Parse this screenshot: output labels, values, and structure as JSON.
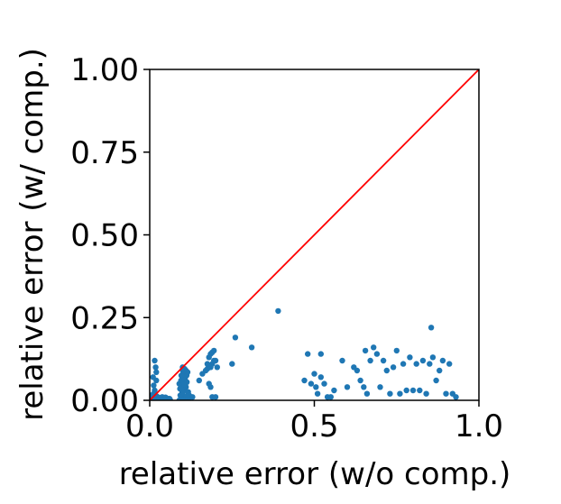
{
  "chart_data": {
    "type": "scatter",
    "title": "",
    "xlabel": "relative error (w/o comp.)",
    "ylabel": "relative error (w/ comp.)",
    "xlim": [
      0.0,
      1.0
    ],
    "ylim": [
      0.0,
      1.0
    ],
    "x_ticks": [
      "0.0",
      "0.5",
      "1.0"
    ],
    "y_ticks": [
      "0.00",
      "0.25",
      "0.50",
      "0.75",
      "1.00"
    ],
    "grid": false,
    "legend": "none",
    "colors": {
      "points": "#1f77b4",
      "reference_line": "#ff0000",
      "axes": "#000000"
    },
    "reference_line": {
      "x": [
        0.0,
        1.0
      ],
      "y": [
        0.0,
        1.0
      ]
    },
    "series": [
      {
        "points": [
          [
            0.01,
            0.0
          ],
          [
            0.015,
            0.005
          ],
          [
            0.02,
            0.01
          ],
          [
            0.025,
            0.003
          ],
          [
            0.03,
            0.008
          ],
          [
            0.035,
            0.004
          ],
          [
            0.04,
            0.006
          ],
          [
            0.045,
            0.002
          ],
          [
            0.05,
            0.007
          ],
          [
            0.055,
            0.003
          ],
          [
            0.06,
            0.005
          ],
          [
            0.005,
            0.015
          ],
          [
            0.012,
            0.02
          ],
          [
            0.018,
            0.004
          ],
          [
            0.022,
            0.012
          ],
          [
            0.028,
            0.006
          ],
          [
            0.033,
            0.002
          ],
          [
            0.038,
            0.01
          ],
          [
            0.042,
            0.004
          ],
          [
            0.048,
            0.009
          ],
          [
            0.052,
            0.001
          ],
          [
            0.058,
            0.004
          ],
          [
            0.062,
            0.002
          ],
          [
            0.008,
            0.003
          ],
          [
            0.01,
            0.07
          ],
          [
            0.012,
            0.045
          ],
          [
            0.015,
            0.12
          ],
          [
            0.018,
            0.1
          ],
          [
            0.02,
            0.085
          ],
          [
            0.02,
            0.06
          ],
          [
            0.015,
            0.03
          ],
          [
            0.09,
            0.0
          ],
          [
            0.095,
            0.01
          ],
          [
            0.1,
            0.02
          ],
          [
            0.105,
            0.03
          ],
          [
            0.11,
            0.04
          ],
          [
            0.09,
            0.05
          ],
          [
            0.095,
            0.06
          ],
          [
            0.1,
            0.07
          ],
          [
            0.105,
            0.08
          ],
          [
            0.11,
            0.09
          ],
          [
            0.1,
            0.1
          ],
          [
            0.092,
            0.035
          ],
          [
            0.097,
            0.045
          ],
          [
            0.102,
            0.055
          ],
          [
            0.107,
            0.065
          ],
          [
            0.112,
            0.075
          ],
          [
            0.115,
            0.085
          ],
          [
            0.117,
            0.025
          ],
          [
            0.12,
            0.015
          ],
          [
            0.118,
            0.005
          ],
          [
            0.093,
            0.015
          ],
          [
            0.099,
            0.025
          ],
          [
            0.104,
            0.005
          ],
          [
            0.108,
            0.045
          ],
          [
            0.113,
            0.055
          ],
          [
            0.096,
            0.075
          ],
          [
            0.101,
            0.088
          ],
          [
            0.106,
            0.095
          ],
          [
            0.111,
            0.012
          ],
          [
            0.1,
            0.038
          ],
          [
            0.105,
            0.048
          ],
          [
            0.13,
            0.01
          ],
          [
            0.15,
            0.06
          ],
          [
            0.16,
            0.08
          ],
          [
            0.17,
            0.09
          ],
          [
            0.175,
            0.095
          ],
          [
            0.18,
            0.1
          ],
          [
            0.18,
            0.13
          ],
          [
            0.185,
            0.14
          ],
          [
            0.19,
            0.145
          ],
          [
            0.195,
            0.15
          ],
          [
            0.2,
            0.12
          ],
          [
            0.19,
            0.11
          ],
          [
            0.185,
            0.1
          ],
          [
            0.18,
            0.05
          ],
          [
            0.185,
            0.04
          ],
          [
            0.19,
            0.01
          ],
          [
            0.2,
            0.01
          ],
          [
            0.175,
            0.11
          ],
          [
            0.195,
            0.12
          ],
          [
            0.205,
            0.1
          ],
          [
            0.25,
            0.11
          ],
          [
            0.26,
            0.19
          ],
          [
            0.31,
            0.16
          ],
          [
            0.39,
            0.27
          ],
          [
            0.47,
            0.06
          ],
          [
            0.48,
            0.14
          ],
          [
            0.49,
            0.05
          ],
          [
            0.5,
            0.08
          ],
          [
            0.505,
            0.04
          ],
          [
            0.51,
            0.02
          ],
          [
            0.52,
            0.07
          ],
          [
            0.52,
            0.14
          ],
          [
            0.53,
            0.05
          ],
          [
            0.54,
            0.01
          ],
          [
            0.55,
            0.01
          ],
          [
            0.56,
            0.03
          ],
          [
            0.585,
            0.12
          ],
          [
            0.6,
            0.04
          ],
          [
            0.62,
            0.1
          ],
          [
            0.63,
            0.09
          ],
          [
            0.64,
            0.06
          ],
          [
            0.65,
            0.04
          ],
          [
            0.655,
            0.15
          ],
          [
            0.66,
            0.02
          ],
          [
            0.67,
            0.12
          ],
          [
            0.68,
            0.16
          ],
          [
            0.69,
            0.14
          ],
          [
            0.7,
            0.04
          ],
          [
            0.71,
            0.12
          ],
          [
            0.72,
            0.09
          ],
          [
            0.73,
            0.02
          ],
          [
            0.74,
            0.1
          ],
          [
            0.75,
            0.15
          ],
          [
            0.76,
            0.02
          ],
          [
            0.77,
            0.11
          ],
          [
            0.78,
            0.03
          ],
          [
            0.79,
            0.13
          ],
          [
            0.8,
            0.03
          ],
          [
            0.81,
            0.11
          ],
          [
            0.82,
            0.03
          ],
          [
            0.83,
            0.12
          ],
          [
            0.84,
            0.02
          ],
          [
            0.85,
            0.11
          ],
          [
            0.855,
            0.22
          ],
          [
            0.86,
            0.13
          ],
          [
            0.87,
            0.06
          ],
          [
            0.88,
            0.09
          ],
          [
            0.89,
            0.12
          ],
          [
            0.9,
            0.02
          ],
          [
            0.91,
            0.11
          ],
          [
            0.92,
            0.02
          ],
          [
            0.93,
            0.01
          ]
        ]
      }
    ]
  }
}
